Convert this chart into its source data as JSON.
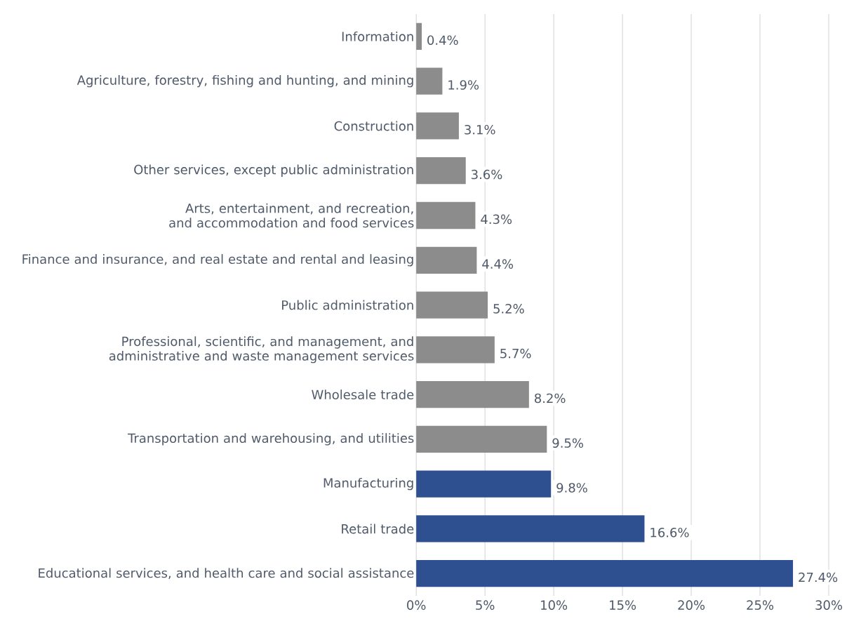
{
  "chart_data": {
    "type": "bar",
    "orientation": "horizontal",
    "categories": [
      "Information",
      "Agriculture, forestry, fishing and hunting, and mining",
      "Construction",
      "Other services, except public administration",
      "Arts, entertainment, and recreation, and accommodation and food services",
      "Finance and insurance, and real estate and rental and leasing",
      "Public administration",
      "Professional, scientific, and management, and administrative and waste management services",
      "Wholesale trade",
      "Transportation and warehousing, and utilities",
      "Manufacturing",
      "Retail trade",
      "Educational services, and health care and social assistance"
    ],
    "values": [
      0.4,
      1.9,
      3.1,
      3.6,
      4.3,
      4.4,
      5.2,
      5.7,
      8.2,
      9.5,
      9.8,
      16.6,
      27.4
    ],
    "colors": [
      "#8c8c8c",
      "#8c8c8c",
      "#8c8c8c",
      "#8c8c8c",
      "#8c8c8c",
      "#8c8c8c",
      "#8c8c8c",
      "#8c8c8c",
      "#8c8c8c",
      "#8c8c8c",
      "#2e5090",
      "#2e5090",
      "#2e5090"
    ],
    "value_labels": [
      "0.4%",
      "1.9%",
      "3.1%",
      "3.6%",
      "4.3%",
      "4.4%",
      "5.2%",
      "5.7%",
      "8.2%",
      "9.5%",
      "9.8%",
      "16.6%",
      "27.4%"
    ],
    "xlim": [
      0,
      30
    ],
    "xticks": [
      {
        "value": 0,
        "label": "0%"
      },
      {
        "value": 5,
        "label": "5%"
      },
      {
        "value": 10,
        "label": "10%"
      },
      {
        "value": 15,
        "label": "15%"
      },
      {
        "value": 20,
        "label": "20%"
      },
      {
        "value": 25,
        "label": "25%"
      },
      {
        "value": 30,
        "label": "30%"
      }
    ],
    "grid": "x"
  }
}
